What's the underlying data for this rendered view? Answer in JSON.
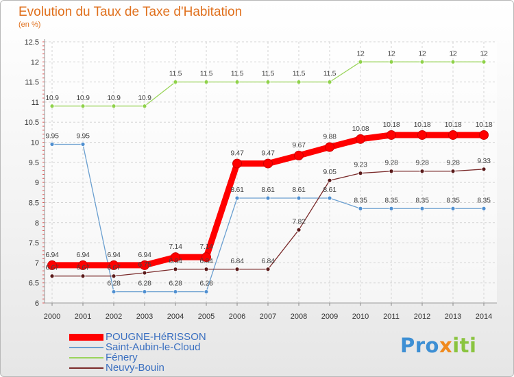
{
  "header": {
    "title": "Evolution du Taux de Taxe d'Habitation",
    "unit": "(en %)"
  },
  "branding": {
    "logo_text": "Proxiti",
    "colors": [
      "#3d8fd4",
      "#f08a1e",
      "#8ac43f"
    ]
  },
  "chart_data": {
    "type": "line",
    "title": "Evolution du Taux de Taxe d'Habitation",
    "ylabel": "(en %)",
    "xlabel": "",
    "x": [
      "2000",
      "2001",
      "2002",
      "2003",
      "2004",
      "2005",
      "2006",
      "2007",
      "2008",
      "2009",
      "2010",
      "2011",
      "2012",
      "2013",
      "2014"
    ],
    "ylim": [
      6,
      12.5
    ],
    "yticks": [
      "6",
      "6.5",
      "7",
      "7.5",
      "8",
      "8.5",
      "9",
      "9.5",
      "10",
      "10.5",
      "11",
      "11.5",
      "12",
      "12.5"
    ],
    "grid": true,
    "legend_position": "bottom-left",
    "series": [
      {
        "name": "POUGNE-HéRISSON",
        "color": "#ff0000",
        "emphasis": true,
        "values": [
          6.94,
          6.94,
          6.94,
          6.94,
          7.14,
          7.14,
          9.47,
          9.47,
          9.67,
          9.88,
          10.08,
          10.18,
          10.18,
          10.18,
          10.18
        ],
        "labels": [
          "6.94",
          "6.94",
          "6.94",
          "6.94",
          "7.14",
          "7.14",
          "9.47",
          "9.47",
          "9.67",
          "9.88",
          "10.08",
          "10.18",
          "10.18",
          "10.18",
          "10.18"
        ]
      },
      {
        "name": "Saint-Aubin-le-Cloud",
        "color": "#6a9fd0",
        "values": [
          9.95,
          9.95,
          6.28,
          6.28,
          6.28,
          6.28,
          8.61,
          8.61,
          8.61,
          8.61,
          8.35,
          8.35,
          8.35,
          8.35,
          8.35
        ],
        "labels": [
          "9.95",
          "9.95",
          "6.28",
          "6.28",
          "6.28",
          "6.28",
          "8.61",
          "8.61",
          "8.61",
          "8.61",
          "8.35",
          "8.35",
          "8.35",
          "8.35",
          "8.35"
        ]
      },
      {
        "name": "Fénery",
        "color": "#9ad45b",
        "values": [
          10.9,
          10.9,
          10.9,
          10.9,
          11.5,
          11.5,
          11.5,
          11.5,
          11.5,
          11.5,
          12,
          12,
          12,
          12,
          12
        ],
        "labels": [
          "10.9",
          "10.9",
          "10.9",
          "10.9",
          "11.5",
          "11.5",
          "11.5",
          "11.5",
          "11.5",
          "11.5",
          "12",
          "12",
          "12",
          "12",
          "12"
        ]
      },
      {
        "name": "Neuvy-Bouin",
        "color": "#7a2a2a",
        "values": [
          6.67,
          6.67,
          6.67,
          6.75,
          6.84,
          6.84,
          6.84,
          6.84,
          7.82,
          9.05,
          9.23,
          9.28,
          9.28,
          9.28,
          9.33
        ],
        "labels": [
          "6.67",
          "6.67",
          "6.67",
          "6.75",
          "6.84",
          "6.84",
          "6.84",
          "6.84",
          "7.82",
          "9.05",
          "9.23",
          "9.28",
          "9.28",
          "9.28",
          "9.33"
        ]
      }
    ]
  }
}
